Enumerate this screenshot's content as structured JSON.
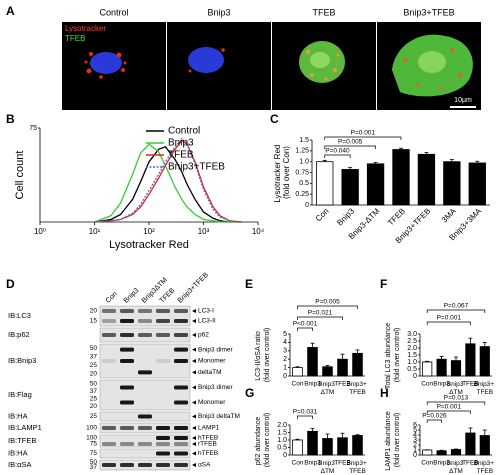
{
  "panel_a": {
    "label": "A",
    "columns": [
      "Control",
      "Bnip3",
      "TFEB",
      "Bnip3+TFEB"
    ],
    "stain_red": "Lysotracker",
    "stain_green": "TFEB",
    "scale_bar": "10μm"
  },
  "panel_d": {
    "label": "D",
    "lanes": [
      "Con",
      "Bnip3",
      "Bnip3ΔTM",
      "TFEB",
      "Bnip3+TFEB"
    ],
    "rows": [
      {
        "antibody": "IB:LC3",
        "markers": [
          20,
          15
        ],
        "bands": [
          "LC3-I",
          "LC3-II"
        ]
      },
      {
        "antibody": "IB:p62",
        "markers": [],
        "bands": [
          "p62"
        ]
      },
      {
        "antibody": "IB:Bnip3",
        "markers": [
          50,
          37,
          25,
          20
        ],
        "bands": [
          "Bnip3 dimer",
          "Monomer",
          "deltaTM"
        ]
      },
      {
        "antibody": "IB:Flag",
        "markers": [
          50,
          37,
          25,
          20
        ],
        "bands": [
          "Bnip3 dimer",
          "Monomer"
        ]
      },
      {
        "antibody": "IB:HA",
        "markers": [
          25
        ],
        "bands": [
          "Bnip3 deltaTM"
        ]
      },
      {
        "antibody": "IB:LAMP1",
        "markers": [
          100
        ],
        "bands": [
          "LAMP1"
        ]
      },
      {
        "antibody": "IB:TFEB",
        "markers": [
          100,
          75
        ],
        "bands": [
          "hTFEB",
          "rTFEB"
        ]
      },
      {
        "antibody": "IB:HA",
        "markers": [
          75
        ],
        "bands": [
          "hTFEB"
        ]
      },
      {
        "antibody": "IB:αSA",
        "markers": [
          50,
          37
        ],
        "bands": [
          "αSA"
        ]
      }
    ]
  },
  "chart_data": [
    {
      "panel": "B",
      "type": "line",
      "x_label": "Lysotracker Red",
      "y_label": "Cell count",
      "xscale": "log",
      "x": [
        10,
        20,
        30,
        50,
        70,
        100,
        150,
        200,
        300,
        400,
        500,
        700,
        1000,
        1500,
        2000,
        3000,
        5000
      ],
      "xlim": [
        1,
        10000
      ],
      "xticks": [
        {
          "value": 1,
          "label": "10⁰"
        },
        {
          "value": 10,
          "label": "10¹"
        },
        {
          "value": 100,
          "label": "10²"
        },
        {
          "value": 1000,
          "label": "10³"
        },
        {
          "value": 10000,
          "label": "10⁴"
        }
      ],
      "ylim": [
        0,
        75
      ],
      "yticks": [
        75
      ],
      "legend": "upper right",
      "series": [
        {
          "name": "Control",
          "color": "#000000",
          "style": "solid",
          "values": [
            0,
            2,
            6,
            18,
            32,
            48,
            58,
            60,
            50,
            40,
            30,
            18,
            8,
            3,
            1,
            0,
            0
          ]
        },
        {
          "name": "Bnip3",
          "color": "#33cc33",
          "style": "solid",
          "values": [
            0,
            5,
            15,
            38,
            55,
            62,
            56,
            45,
            28,
            18,
            12,
            6,
            2,
            1,
            0,
            0,
            0
          ]
        },
        {
          "name": "TFEB",
          "color": "#e8231e",
          "style": "solid",
          "values": [
            0,
            1,
            2,
            6,
            12,
            22,
            35,
            45,
            58,
            65,
            62,
            48,
            28,
            12,
            5,
            1,
            0
          ]
        },
        {
          "name": "Bnip3+TFEB",
          "color": "#3a6fd8",
          "style": "dotted",
          "values": [
            0,
            1,
            2,
            7,
            14,
            25,
            38,
            48,
            60,
            66,
            63,
            46,
            26,
            10,
            4,
            1,
            0
          ]
        }
      ]
    },
    {
      "panel": "C",
      "type": "bar",
      "y_label": "Lysotracker Red (fold over Con)",
      "categories": [
        "Con",
        "Bnip3",
        "Bnip3-ΔTM",
        "TFEB",
        "Bnip3+TFEB",
        "3MA",
        "Bnip3+3MA"
      ],
      "values": [
        1.0,
        0.82,
        0.95,
        1.28,
        1.17,
        1.0,
        0.97
      ],
      "errors": [
        0.03,
        0.05,
        0.03,
        0.03,
        0.04,
        0.05,
        0.04
      ],
      "colors": [
        "#ffffff",
        "#000000",
        "#000000",
        "#000000",
        "#000000",
        "#000000",
        "#000000"
      ],
      "ylim": [
        0,
        1.5
      ],
      "yticks": [
        0,
        0.25,
        0.5,
        0.75,
        {
          "value": 1,
          "label": "1.0"
        },
        1.25,
        1.5
      ],
      "annotations": [
        "P=0.040",
        "P=0.005",
        "P=0.001"
      ]
    },
    {
      "panel": "E",
      "type": "bar",
      "y_label": "LC3-II/αSA ratio (fold over control)",
      "categories": [
        "Con",
        "Bnip3",
        "Bnip3 ΔTM",
        "TFEB",
        "Bnip3+ TFEB"
      ],
      "values": [
        1.0,
        3.4,
        1.1,
        2.0,
        2.7
      ],
      "errors": [
        0.1,
        0.5,
        0.15,
        0.6,
        0.4
      ],
      "colors": [
        "#ffffff",
        "#000000",
        "#000000",
        "#000000",
        "#000000"
      ],
      "ylim": [
        0,
        5
      ],
      "yticks": [
        0,
        1,
        2,
        3,
        4,
        5
      ],
      "annotations": [
        "P=0.005",
        "P=0.021",
        "P<0.001"
      ]
    },
    {
      "panel": "F",
      "type": "bar",
      "y_label": "Total LC3 abundance (fold over control)",
      "categories": [
        "Con",
        "Bnip3",
        "Bnip3 ΔTM",
        "TFEB",
        "Bnip3+ TFEB"
      ],
      "values": [
        1.0,
        1.2,
        1.1,
        2.3,
        2.1
      ],
      "errors": [
        0.05,
        0.2,
        0.25,
        0.4,
        0.3
      ],
      "colors": [
        "#ffffff",
        "#000000",
        "#000000",
        "#000000",
        "#000000"
      ],
      "ylim": [
        0,
        3
      ],
      "yticks": [
        0,
        0.5,
        {
          "value": 1,
          "label": "1.0"
        },
        1.5,
        {
          "value": 2,
          "label": "2.0"
        },
        2.5,
        {
          "value": 3,
          "label": "3.0"
        }
      ],
      "annotations": [
        "P=0.067",
        "P=0.001"
      ]
    },
    {
      "panel": "G",
      "type": "bar",
      "y_label": "p62 abundance (fold over control)",
      "categories": [
        "Con",
        "Bnip3",
        "Bnip3 ΔTM",
        "TFEB",
        "Bnip3+ TFEB"
      ],
      "values": [
        1.0,
        1.58,
        1.1,
        1.15,
        1.3
      ],
      "errors": [
        0.05,
        0.2,
        0.3,
        0.3,
        0.05
      ],
      "colors": [
        "#ffffff",
        "#000000",
        "#000000",
        "#000000",
        "#000000"
      ],
      "ylim": [
        0,
        2
      ],
      "yticks": [
        0,
        0.5,
        {
          "value": 1,
          "label": "1.0"
        },
        1.5,
        {
          "value": 2,
          "label": "2.0"
        }
      ],
      "annotations": [
        "P=0.031"
      ]
    },
    {
      "panel": "H",
      "type": "bar",
      "y_label": "LAMP1 abundance (fold over control)",
      "categories": [
        "Con",
        "Bnip3",
        "Bnip3 ΔTM",
        "TFEB",
        "Bnip3+ TFEB"
      ],
      "values": [
        1.0,
        0.85,
        1.1,
        4.4,
        3.9
      ],
      "errors": [
        0.05,
        0.1,
        0.1,
        1.0,
        1.1
      ],
      "colors": [
        "#ffffff",
        "#000000",
        "#000000",
        "#000000",
        "#000000"
      ],
      "ylim": [
        0,
        6
      ],
      "yticks": [
        0,
        1,
        2,
        3,
        4,
        5,
        6
      ],
      "annotations": [
        "P=0.013",
        "P=0.001",
        "P=0.026"
      ]
    }
  ]
}
